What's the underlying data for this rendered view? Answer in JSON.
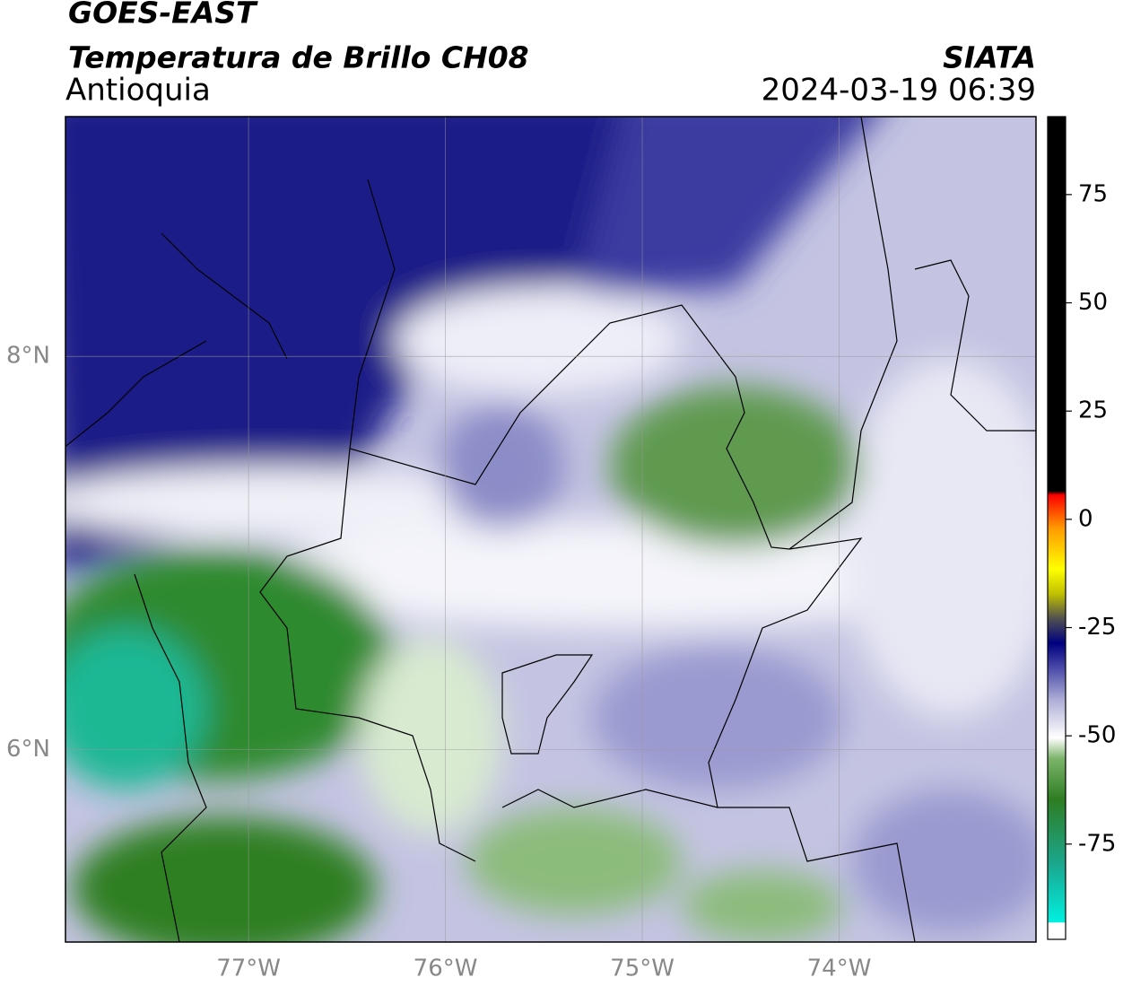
{
  "header": {
    "title": "GOES-EAST",
    "subtitle": "Temperatura de Brillo CH08",
    "region": "Antioquia",
    "source": "SIATA",
    "datetime": "2024-03-19 06:39"
  },
  "map": {
    "lon_range": [
      -77.93,
      -73.0
    ],
    "lat_range": [
      5.02,
      9.22
    ],
    "lon_ticks": [
      {
        "value": -77,
        "label": "77°W"
      },
      {
        "value": -76,
        "label": "76°W"
      },
      {
        "value": -75,
        "label": "75°W"
      },
      {
        "value": -74,
        "label": "74°W"
      }
    ],
    "lat_ticks": [
      {
        "value": 8,
        "label": "8°N"
      },
      {
        "value": 6,
        "label": "6°N"
      }
    ]
  },
  "colorbar": {
    "range": [
      -97,
      93
    ],
    "ticks": [
      -75,
      -50,
      -25,
      0,
      25,
      50,
      75
    ]
  }
}
